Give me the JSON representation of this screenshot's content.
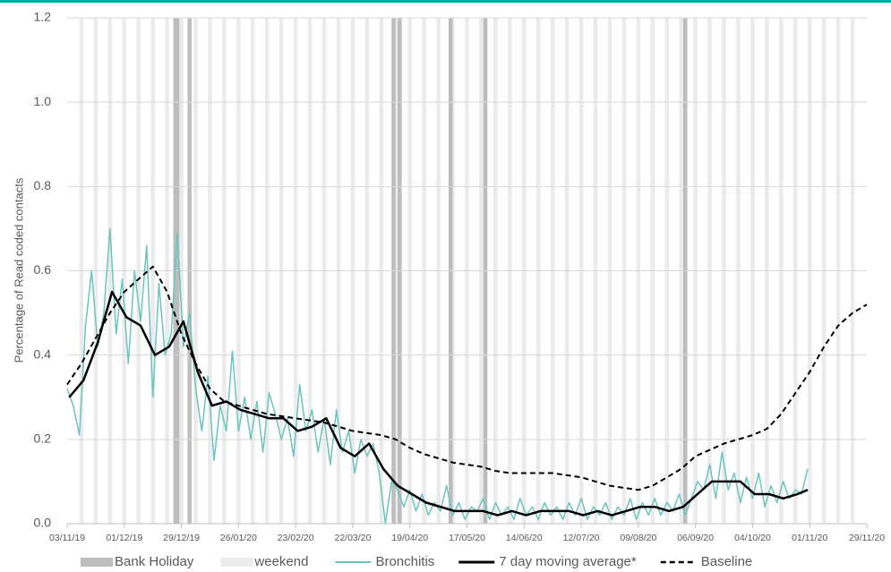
{
  "chart_data": {
    "type": "line",
    "y_label": "Percentage  of Read  coded contacts",
    "xlim": [
      0,
      392
    ],
    "xticks": [
      {
        "value": 0,
        "label": "03/11/19"
      },
      {
        "value": 28,
        "label": "01/12/19"
      },
      {
        "value": 56,
        "label": "29/12/19"
      },
      {
        "value": 84,
        "label": "26/01/20"
      },
      {
        "value": 112,
        "label": "23/02/20"
      },
      {
        "value": 140,
        "label": "22/03/20"
      },
      {
        "value": 168,
        "label": "19/04/20"
      },
      {
        "value": 196,
        "label": "17/05/20"
      },
      {
        "value": 224,
        "label": "14/06/20"
      },
      {
        "value": 252,
        "label": "12/07/20"
      },
      {
        "value": 280,
        "label": "09/08/20"
      },
      {
        "value": 308,
        "label": "06/09/20"
      },
      {
        "value": 336,
        "label": "04/10/20"
      },
      {
        "value": 364,
        "label": "01/11/20"
      },
      {
        "value": 392,
        "label": "29/11/20"
      }
    ],
    "ylim": [
      0,
      1.2
    ],
    "yticks": [
      {
        "value": 0,
        "label": "0.0"
      },
      0.2,
      0.4,
      0.6,
      0.8,
      {
        "value": 1,
        "label": "1.0"
      },
      1.2
    ],
    "grid": true,
    "shading": [
      {
        "name": "Bank Holiday",
        "color": "#bdbdbd",
        "days": [
          52,
          53,
          59,
          159,
          162,
          187,
          204,
          302
        ]
      },
      {
        "name": "weekend",
        "color": "#ebebeb",
        "days": [
          6,
          13,
          20,
          27,
          34,
          41,
          48,
          55,
          62,
          69,
          76,
          83,
          90,
          97,
          104,
          111,
          118,
          125,
          132,
          139,
          146,
          153,
          160,
          167,
          174,
          181,
          188,
          195,
          202,
          209,
          216,
          223,
          230,
          237,
          244,
          251,
          258,
          265,
          272,
          279,
          286,
          293,
          300,
          307,
          314,
          321,
          328,
          335,
          342,
          349,
          356,
          363,
          370,
          377,
          384
        ]
      }
    ],
    "series": [
      {
        "name": "Bronchitis",
        "color": "#6cc5bd",
        "width": 1.5,
        "dashed": false,
        "x": [
          0,
          3,
          6,
          9,
          12,
          15,
          18,
          21,
          24,
          27,
          30,
          33,
          36,
          39,
          42,
          45,
          48,
          51,
          54,
          57,
          60,
          63,
          66,
          69,
          72,
          75,
          78,
          81,
          84,
          87,
          90,
          93,
          96,
          99,
          102,
          105,
          108,
          111,
          114,
          117,
          120,
          123,
          126,
          129,
          132,
          135,
          138,
          141,
          144,
          147,
          150,
          153,
          156,
          159,
          162,
          165,
          168,
          171,
          174,
          177,
          180,
          183,
          186,
          189,
          192,
          195,
          198,
          201,
          204,
          207,
          210,
          213,
          216,
          219,
          222,
          225,
          228,
          231,
          234,
          237,
          240,
          243,
          246,
          249,
          252,
          255,
          258,
          261,
          264,
          267,
          270,
          273,
          276,
          279,
          282,
          285,
          288,
          291,
          294,
          297,
          300,
          303,
          306,
          309,
          312,
          315,
          318,
          321,
          324,
          327,
          330,
          333,
          336,
          339,
          342,
          345,
          348,
          351,
          354,
          357,
          360,
          363
        ],
        "values": [
          0.32,
          0.28,
          0.21,
          0.47,
          0.6,
          0.42,
          0.5,
          0.7,
          0.45,
          0.58,
          0.38,
          0.6,
          0.48,
          0.66,
          0.3,
          0.57,
          0.4,
          0.45,
          0.69,
          0.42,
          0.5,
          0.32,
          0.22,
          0.35,
          0.15,
          0.28,
          0.22,
          0.41,
          0.22,
          0.3,
          0.2,
          0.29,
          0.17,
          0.31,
          0.26,
          0.2,
          0.25,
          0.16,
          0.33,
          0.22,
          0.27,
          0.17,
          0.25,
          0.14,
          0.27,
          0.17,
          0.22,
          0.12,
          0.2,
          0.16,
          0.19,
          0.12,
          0.0,
          0.1,
          0.08,
          0.04,
          0.08,
          0.03,
          0.07,
          0.02,
          0.05,
          0.03,
          0.09,
          0.02,
          0.05,
          0.01,
          0.04,
          0.03,
          0.06,
          0.01,
          0.05,
          0.02,
          0.04,
          0.01,
          0.06,
          0.02,
          0.04,
          0.01,
          0.05,
          0.02,
          0.04,
          0.01,
          0.05,
          0.02,
          0.06,
          0.01,
          0.04,
          0.02,
          0.05,
          0.01,
          0.04,
          0.02,
          0.06,
          0.01,
          0.05,
          0.02,
          0.06,
          0.02,
          0.05,
          0.03,
          0.07,
          0.02,
          0.06,
          0.1,
          0.08,
          0.14,
          0.06,
          0.17,
          0.08,
          0.12,
          0.05,
          0.11,
          0.06,
          0.12,
          0.04,
          0.09,
          0.05,
          0.1,
          0.06,
          0.08,
          0.07,
          0.13
        ]
      },
      {
        "name": "7 day moving average*",
        "color": "#000000",
        "width": 2.5,
        "dashed": false,
        "x": [
          1,
          8,
          15,
          22,
          29,
          36,
          43,
          50,
          57,
          64,
          71,
          78,
          85,
          92,
          99,
          106,
          113,
          120,
          127,
          134,
          141,
          148,
          155,
          162,
          169,
          176,
          183,
          190,
          197,
          204,
          211,
          218,
          225,
          232,
          239,
          246,
          253,
          260,
          267,
          274,
          281,
          288,
          295,
          302,
          309,
          316,
          323,
          330,
          337,
          344,
          351,
          358,
          363
        ],
        "values": [
          0.3,
          0.34,
          0.43,
          0.55,
          0.49,
          0.47,
          0.4,
          0.42,
          0.48,
          0.36,
          0.28,
          0.29,
          0.27,
          0.26,
          0.25,
          0.25,
          0.22,
          0.23,
          0.25,
          0.18,
          0.16,
          0.19,
          0.13,
          0.09,
          0.07,
          0.05,
          0.04,
          0.03,
          0.03,
          0.03,
          0.02,
          0.03,
          0.02,
          0.03,
          0.03,
          0.03,
          0.02,
          0.03,
          0.02,
          0.03,
          0.04,
          0.04,
          0.03,
          0.04,
          0.07,
          0.1,
          0.1,
          0.1,
          0.07,
          0.07,
          0.06,
          0.07,
          0.08
        ]
      },
      {
        "name": "Baseline",
        "color": "#000000",
        "width": 2,
        "dashed": true,
        "x": [
          0,
          7,
          14,
          21,
          28,
          35,
          42,
          49,
          56,
          63,
          70,
          77,
          84,
          91,
          98,
          105,
          112,
          119,
          126,
          133,
          140,
          147,
          154,
          161,
          168,
          175,
          182,
          189,
          196,
          203,
          210,
          217,
          224,
          231,
          238,
          245,
          252,
          259,
          266,
          273,
          280,
          287,
          294,
          301,
          308,
          315,
          322,
          329,
          336,
          343,
          350,
          357,
          364,
          371,
          378,
          385,
          392
        ],
        "values": [
          0.33,
          0.38,
          0.44,
          0.5,
          0.55,
          0.58,
          0.61,
          0.55,
          0.45,
          0.38,
          0.32,
          0.29,
          0.28,
          0.27,
          0.26,
          0.255,
          0.25,
          0.245,
          0.24,
          0.23,
          0.22,
          0.215,
          0.21,
          0.2,
          0.18,
          0.165,
          0.155,
          0.145,
          0.14,
          0.135,
          0.125,
          0.12,
          0.12,
          0.12,
          0.12,
          0.115,
          0.11,
          0.1,
          0.09,
          0.085,
          0.08,
          0.09,
          0.11,
          0.13,
          0.16,
          0.175,
          0.19,
          0.2,
          0.21,
          0.225,
          0.26,
          0.31,
          0.36,
          0.42,
          0.47,
          0.5,
          0.52
        ]
      }
    ]
  }
}
